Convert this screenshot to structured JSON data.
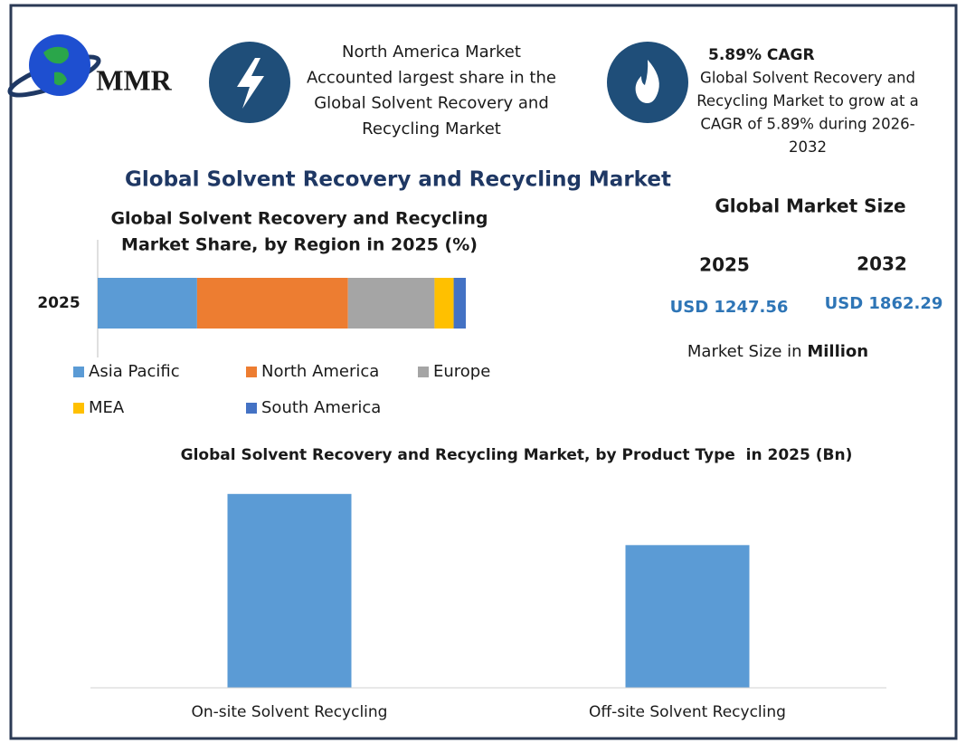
{
  "header": {
    "logo": "MMR",
    "fact1_lines": [
      "North America Market",
      "Accounted largest share in the",
      "Global Solvent Recovery and",
      "Recycling Market"
    ],
    "cagr": "5.89% CAGR",
    "fact2_lines": [
      "Global Solvent Recovery and",
      "Recycling Market to grow at a",
      "CAGR of 5.89% during 2026-",
      "2032"
    ]
  },
  "title": "Global Solvent Recovery and Recycling Market",
  "market_size": {
    "title": "Global Market Size",
    "years": [
      "2025",
      "2032"
    ],
    "values": [
      "USD 1247.56",
      "USD 1862.29"
    ],
    "note": "Market Size in ",
    "note_unit": "Million"
  },
  "chart_data": [
    {
      "type": "bar",
      "orientation": "horizontal",
      "stacked": true,
      "title_lines": [
        "Global Solvent Recovery and Recycling",
        "Market Share, by Region in 2025 (%)"
      ],
      "categories": [
        "2025"
      ],
      "xlim": [
        0,
        100
      ],
      "series": [
        {
          "name": "Asia Pacific",
          "color": "#5b9bd5",
          "values": [
            27
          ]
        },
        {
          "name": "North America",
          "color": "#ed7d31",
          "values": [
            41
          ]
        },
        {
          "name": "Europe",
          "color": "#a5a5a5",
          "values": [
            23.5
          ]
        },
        {
          "name": "MEA",
          "color": "#ffc000",
          "values": [
            5.2
          ]
        },
        {
          "name": "South America",
          "color": "#4472c4",
          "values": [
            3.3
          ]
        }
      ]
    },
    {
      "type": "bar",
      "title": "Global Solvent Recovery and Recycling Market, by Product Type  in 2025 (Bn)",
      "categories": [
        "On-site Solvent Recycling",
        "Off-site Solvent Recycling"
      ],
      "values": [
        0.72,
        0.53
      ],
      "color": "#5b9bd5",
      "ylim": [
        0,
        0.8
      ]
    }
  ]
}
